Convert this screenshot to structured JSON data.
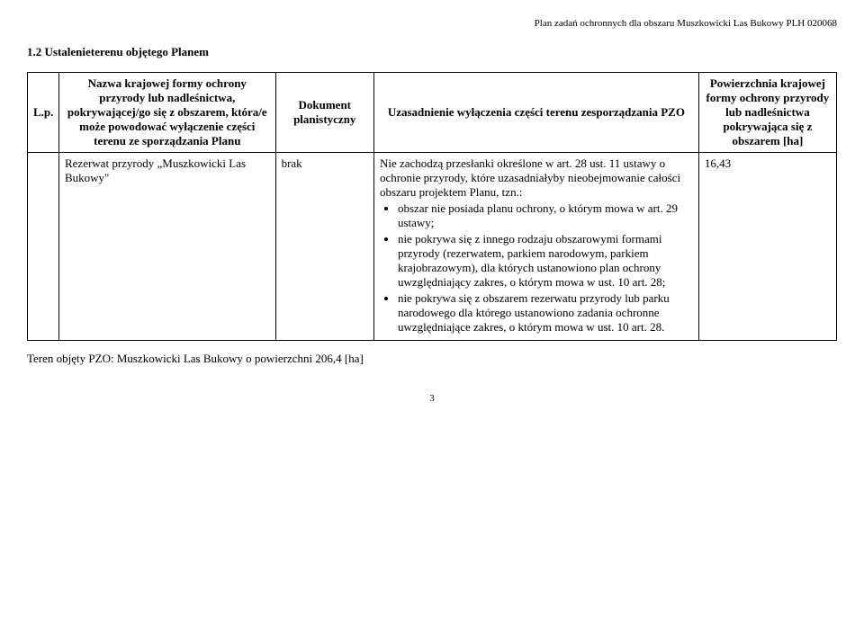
{
  "header": "Plan zadań ochronnych dla obszaru Muszkowicki Las Bukowy PLH 020068",
  "section_title": "1.2 Ustalenieterenu objętego Planem",
  "table": {
    "headers": {
      "lp": "L.p.",
      "nazwa": "Nazwa krajowej formy ochrony przyrody lub nadleśnictwa, pokrywającej/go się z obszarem, która/e może powodować wyłączenie części terenu ze sporządzania Planu",
      "dokument": "Dokument planistyczny",
      "uzasadnienie": "Uzasadnienie wyłączenia części terenu zesporządzania PZO",
      "powierzchnia": "Powierzchnia krajowej formy ochrony przyrody lub nadleśnictwa pokrywająca się z obszarem [ha]"
    },
    "row": {
      "nazwa": "Rezerwat przyrody „Muszkowicki Las Bukowy\"",
      "dokument": "brak",
      "uzas_intro": "Nie zachodzą przesłanki określone w art. 28 ust. 11 ustawy o ochronie przyrody, które uzasadniałyby nieobejmowanie całości obszaru projektem Planu, tzn.:",
      "bullets": [
        "obszar nie posiada planu ochrony, o którym mowa w art. 29 ustawy;",
        "nie pokrywa się z innego rodzaju obszarowymi formami przyrody (rezerwatem, parkiem narodowym, parkiem krajobrazowym), dla których ustanowiono plan ochrony uwzględniający zakres, o którym mowa w ust. 10 art. 28;",
        "nie pokrywa się  z obszarem rezerwatu przyrody lub parku narodowego dla którego ustanowiono zadania ochronne uwzględniające zakres, o którym mowa w ust. 10 art. 28."
      ],
      "powierzchnia": "16,43"
    }
  },
  "footer": "Teren objęty PZO: Muszkowicki Las Bukowy o powierzchni 206,4 [ha]",
  "page_number": "3"
}
